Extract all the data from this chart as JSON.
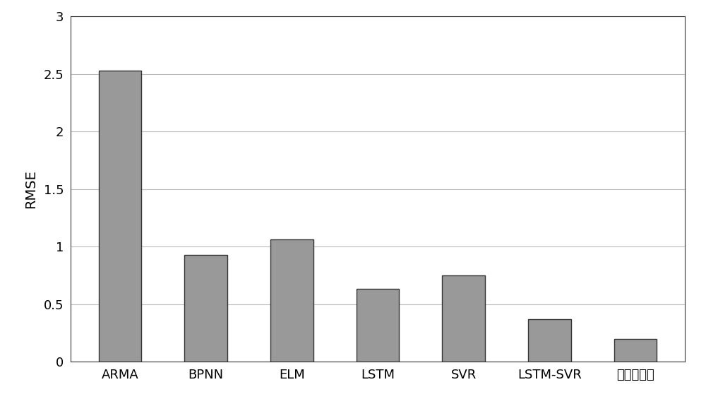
{
  "categories": [
    "ARMA",
    "BPNN",
    "ELM",
    "LSTM",
    "SVR",
    "LSTM-SVR",
    "本发明方法"
  ],
  "values": [
    2.53,
    0.93,
    1.06,
    0.63,
    0.75,
    0.37,
    0.2
  ],
  "bar_color": "#999999",
  "bar_edgecolor": "#333333",
  "ylabel": "RMSE",
  "ylim": [
    0,
    3
  ],
  "yticks": [
    0,
    0.5,
    1.0,
    1.5,
    2.0,
    2.5,
    3.0
  ],
  "ytick_labels": [
    "0",
    "0.5",
    "1",
    "1.5",
    "2",
    "2.5",
    "3"
  ],
  "background_color": "#ffffff",
  "grid_color": "#bbbbbb",
  "ylabel_fontsize": 14,
  "tick_fontsize": 13,
  "bar_width": 0.5,
  "spine_color": "#333333"
}
